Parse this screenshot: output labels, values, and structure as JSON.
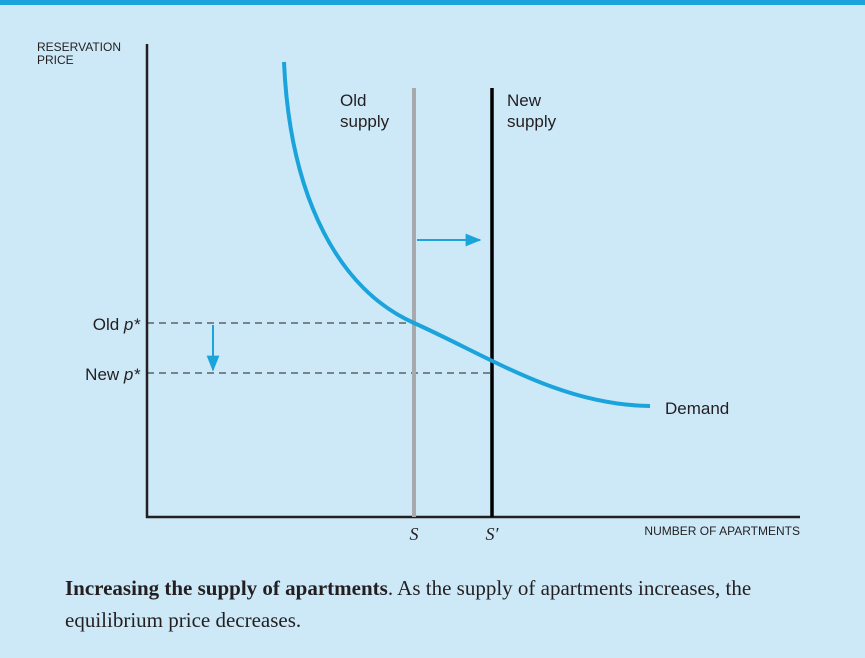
{
  "axes": {
    "y_label": "RESERVATION PRICE",
    "x_label": "NUMBER OF APARTMENTS"
  },
  "curves": {
    "old_supply": "Old supply",
    "new_supply": "New supply",
    "demand": "Demand"
  },
  "prices": {
    "old": {
      "prefix": "Old",
      "symbol": "p*"
    },
    "new": {
      "prefix": "New",
      "symbol": "p*"
    }
  },
  "quantities": {
    "old": "S",
    "new": "S′"
  },
  "caption": {
    "title": "Increasing the supply of apartments",
    "text": ".  As the supply of apartments increases, the equilibrium price decreases."
  }
}
